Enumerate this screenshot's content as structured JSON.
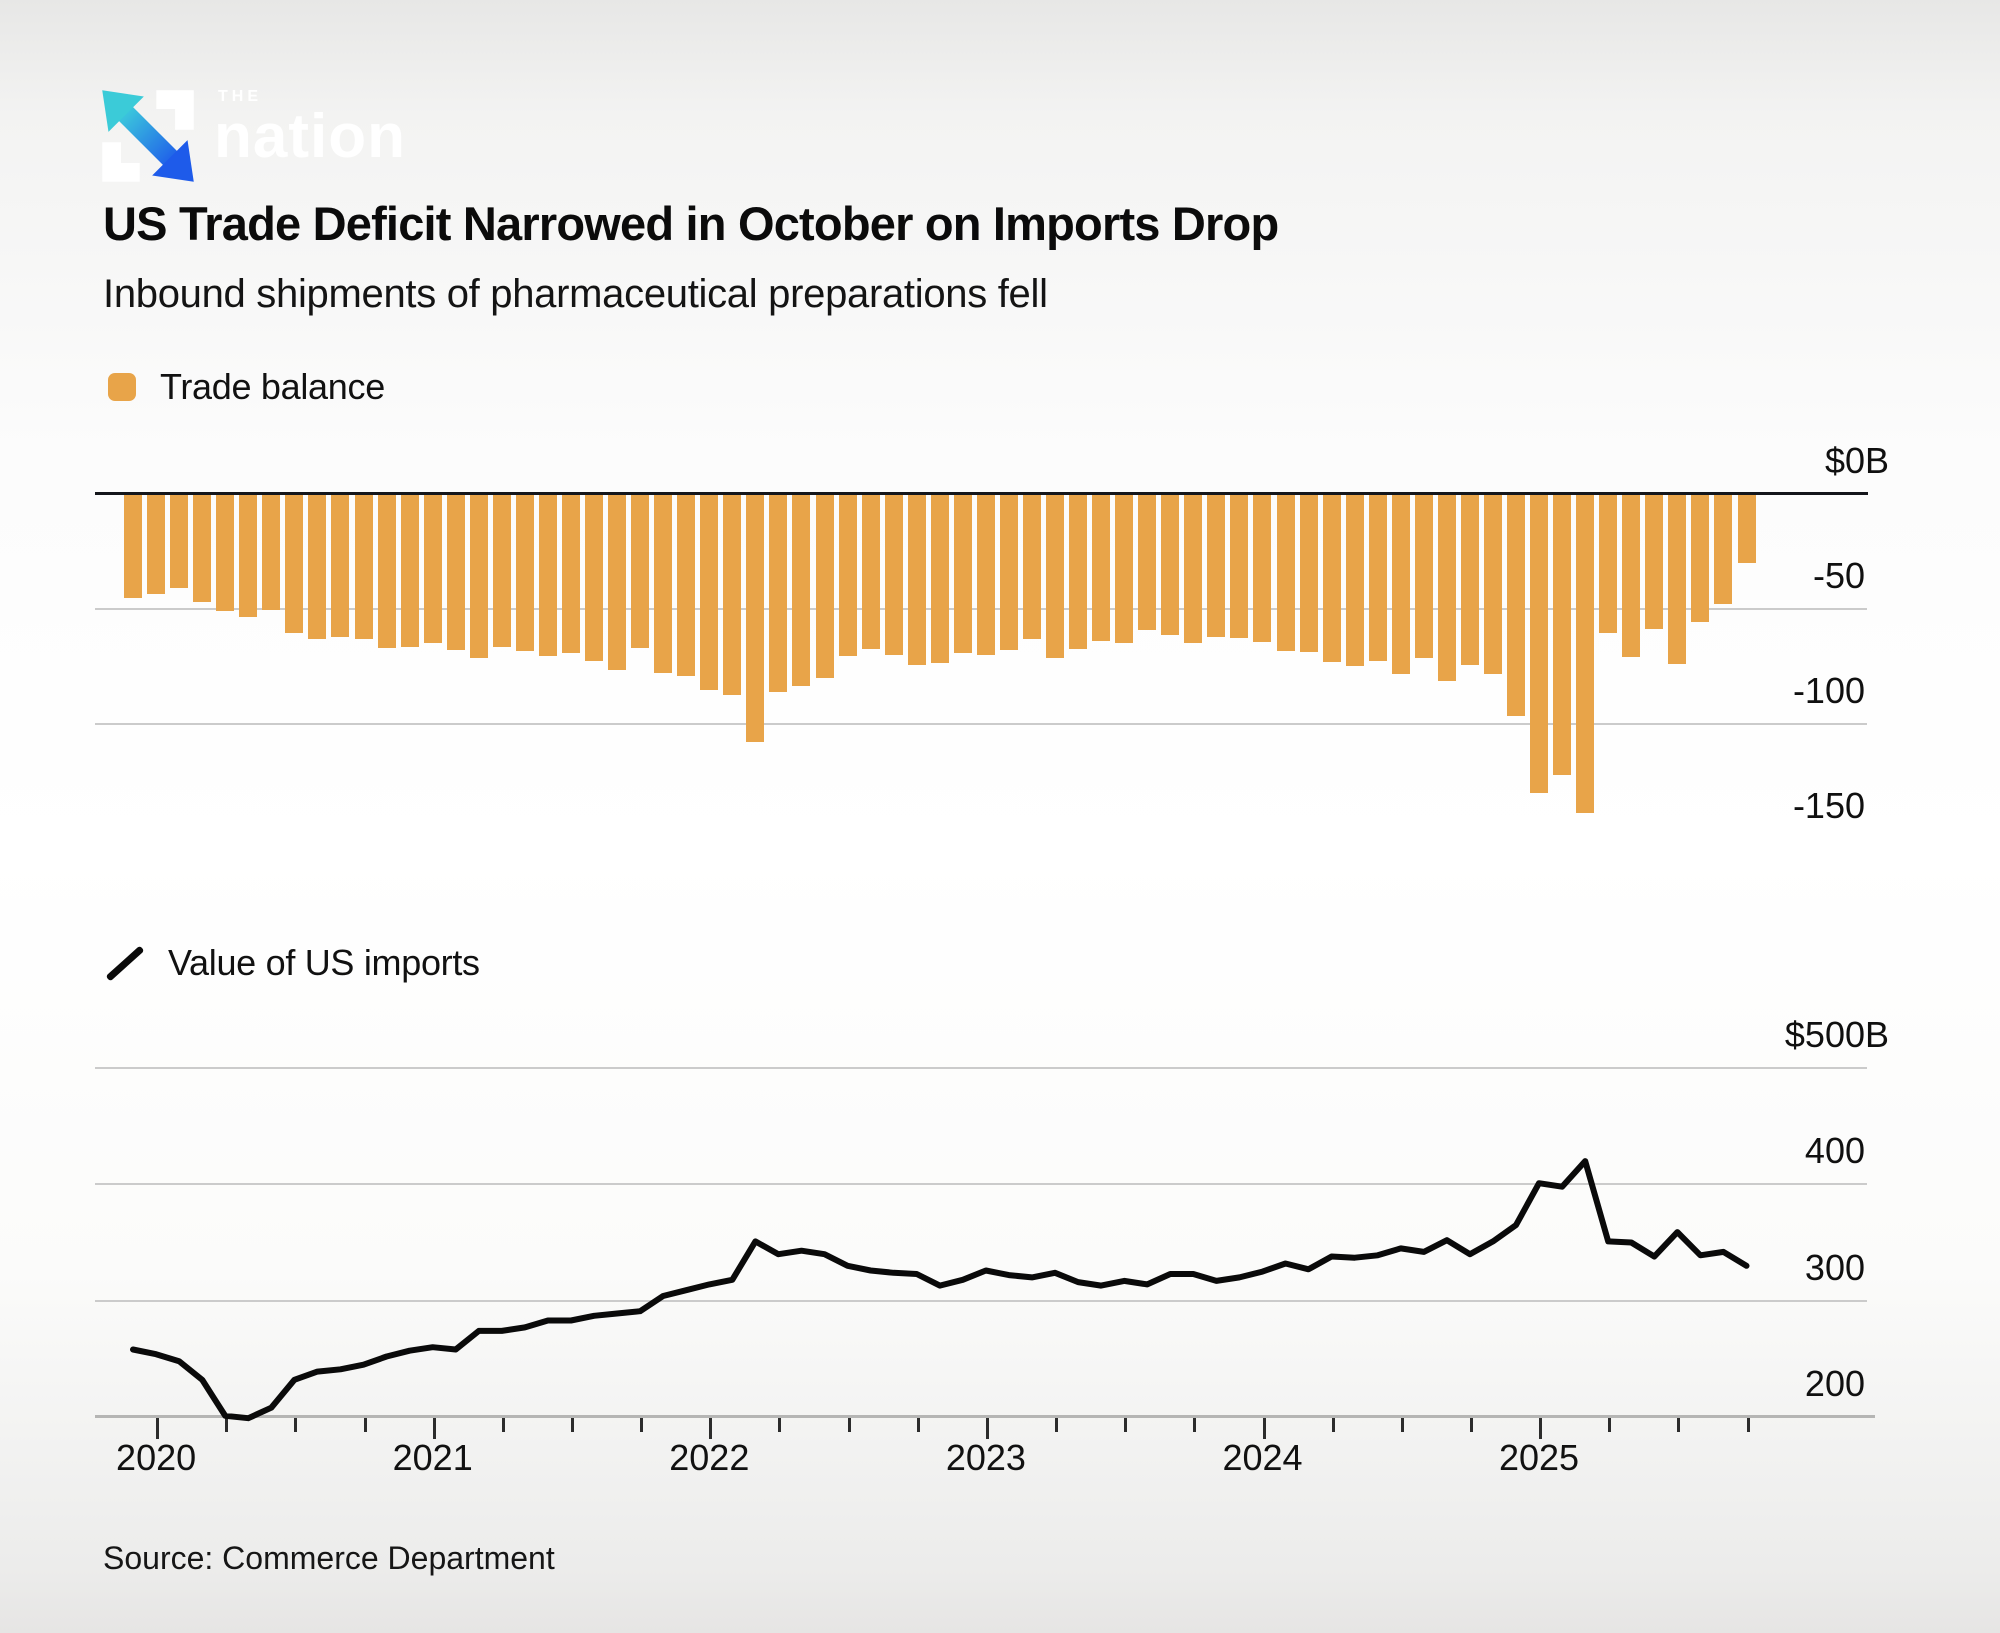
{
  "brand": {
    "the": "THE",
    "name": "nation"
  },
  "header": {
    "title": "US Trade Deficit Narrowed in October on Imports Drop",
    "subtitle": "Inbound shipments of pharmaceutical preparations fell"
  },
  "source": "Source: Commerce Department",
  "colors": {
    "bar_orange": "#E8A449",
    "line_black": "#0a0a0a",
    "gridline_gray": "#cbcbcb",
    "zero_axis": "#14161b",
    "bottom_axis": "#b5b5b4",
    "logo_teal": "#3ECFDB",
    "logo_blue": "#1E5BEA"
  },
  "chart_data": [
    {
      "type": "bar",
      "name": "trade-balance",
      "legend": "Trade balance",
      "unit": "$B",
      "frequency": "monthly",
      "start_month": "2019-12",
      "end_month": "2025-10",
      "y_axis": {
        "ticks": [
          {
            "label": "$0B",
            "num": "$0",
            "suffix": "B",
            "value": 0,
            "gridline": false
          },
          {
            "label": "-50",
            "num": "-50",
            "suffix": "",
            "value": -50,
            "gridline": true
          },
          {
            "label": "-100",
            "num": "-100",
            "suffix": "",
            "value": -100,
            "gridline": true
          },
          {
            "label": "-150",
            "num": "-150",
            "suffix": "",
            "value": -150,
            "gridline": false
          }
        ]
      },
      "values": [
        -45.0,
        -43.6,
        -41.0,
        -47.0,
        -50.9,
        -53.5,
        -50.3,
        -60.2,
        -63.1,
        -62.1,
        -63.0,
        -67.1,
        -66.4,
        -64.9,
        -67.8,
        -71.2,
        -66.3,
        -68.4,
        -70.6,
        -69.3,
        -72.4,
        -76.5,
        -67.1,
        -78.0,
        -79.2,
        -85.3,
        -87.2,
        -107.7,
        -86.1,
        -83.5,
        -80.0,
        -70.4,
        -67.4,
        -69.8,
        -74.5,
        -73.4,
        -69.2,
        -69.8,
        -67.6,
        -63.2,
        -71.4,
        -67.3,
        -63.8,
        -64.9,
        -58.9,
        -61.5,
        -64.6,
        -62.0,
        -62.5,
        -64.3,
        -68.2,
        -68.7,
        -73.1,
        -74.6,
        -72.7,
        -78.4,
        -71.1,
        -81.4,
        -74.2,
        -78.2,
        -96.4,
        -130.0,
        -122.0,
        -138.5,
        -60.5,
        -71.0,
        -58.5,
        -74.0,
        -55.5,
        -48.0,
        -30.0
      ]
    },
    {
      "type": "line",
      "name": "value-of-us-imports",
      "legend": "Value of US imports",
      "unit": "$B",
      "frequency": "monthly",
      "start_month": "2019-12",
      "end_month": "2025-10",
      "y_axis": {
        "ticks": [
          {
            "label": "$500B",
            "num": "$500",
            "suffix": "B",
            "value": 500,
            "gridline": true
          },
          {
            "label": "400",
            "num": "400",
            "suffix": "",
            "value": 400,
            "gridline": true
          },
          {
            "label": "300",
            "num": "300",
            "suffix": "",
            "value": 300,
            "gridline": true
          },
          {
            "label": "200",
            "num": "200",
            "suffix": "",
            "value": 200,
            "gridline": false
          }
        ]
      },
      "x_axis": {
        "year_labels": [
          "2020",
          "2021",
          "2022",
          "2023",
          "2024",
          "2025"
        ]
      },
      "values": [
        258,
        254,
        248,
        232,
        201,
        199,
        208,
        232,
        239,
        241,
        245,
        252,
        257,
        260,
        258,
        274,
        274,
        277,
        283,
        283,
        287,
        289,
        291,
        304,
        309,
        314,
        318,
        351,
        340,
        343,
        340,
        330,
        326,
        324,
        323,
        313,
        318,
        326,
        322,
        320,
        324,
        316,
        313,
        317,
        314,
        323,
        323,
        317,
        320,
        325,
        332,
        327,
        338,
        337,
        339,
        345,
        342,
        352,
        340,
        351,
        365,
        401,
        398,
        420,
        351,
        350,
        338,
        359,
        339,
        342,
        330
      ]
    }
  ]
}
